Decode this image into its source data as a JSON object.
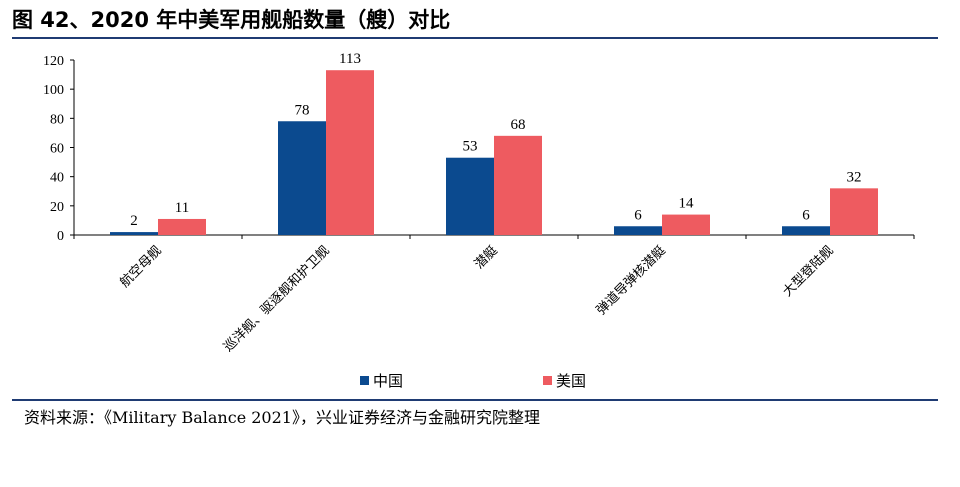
{
  "figure": {
    "title": "图 42、2020 年中美军用舰船数量（艘）对比",
    "source": "资料来源：《Military Balance 2021》，兴业证券经济与金融研究院整理"
  },
  "colors": {
    "china": "#0b4a8f",
    "usa": "#ee5b60",
    "rule": "#1f3b73"
  },
  "chart_data": {
    "type": "bar",
    "categories": [
      "航空母舰",
      "巡洋舰、驱逐舰和护卫舰",
      "潜艇",
      "弹道导弹核潜艇",
      "大型登陆舰"
    ],
    "series": [
      {
        "name": "中国",
        "values": [
          2,
          78,
          53,
          6,
          6
        ]
      },
      {
        "name": "美国",
        "values": [
          11,
          113,
          68,
          14,
          32
        ]
      }
    ],
    "ylim": [
      0,
      120
    ],
    "yticks": [
      0,
      20,
      40,
      60,
      80,
      100,
      120
    ],
    "legend": "bottom-center",
    "grid": false
  }
}
